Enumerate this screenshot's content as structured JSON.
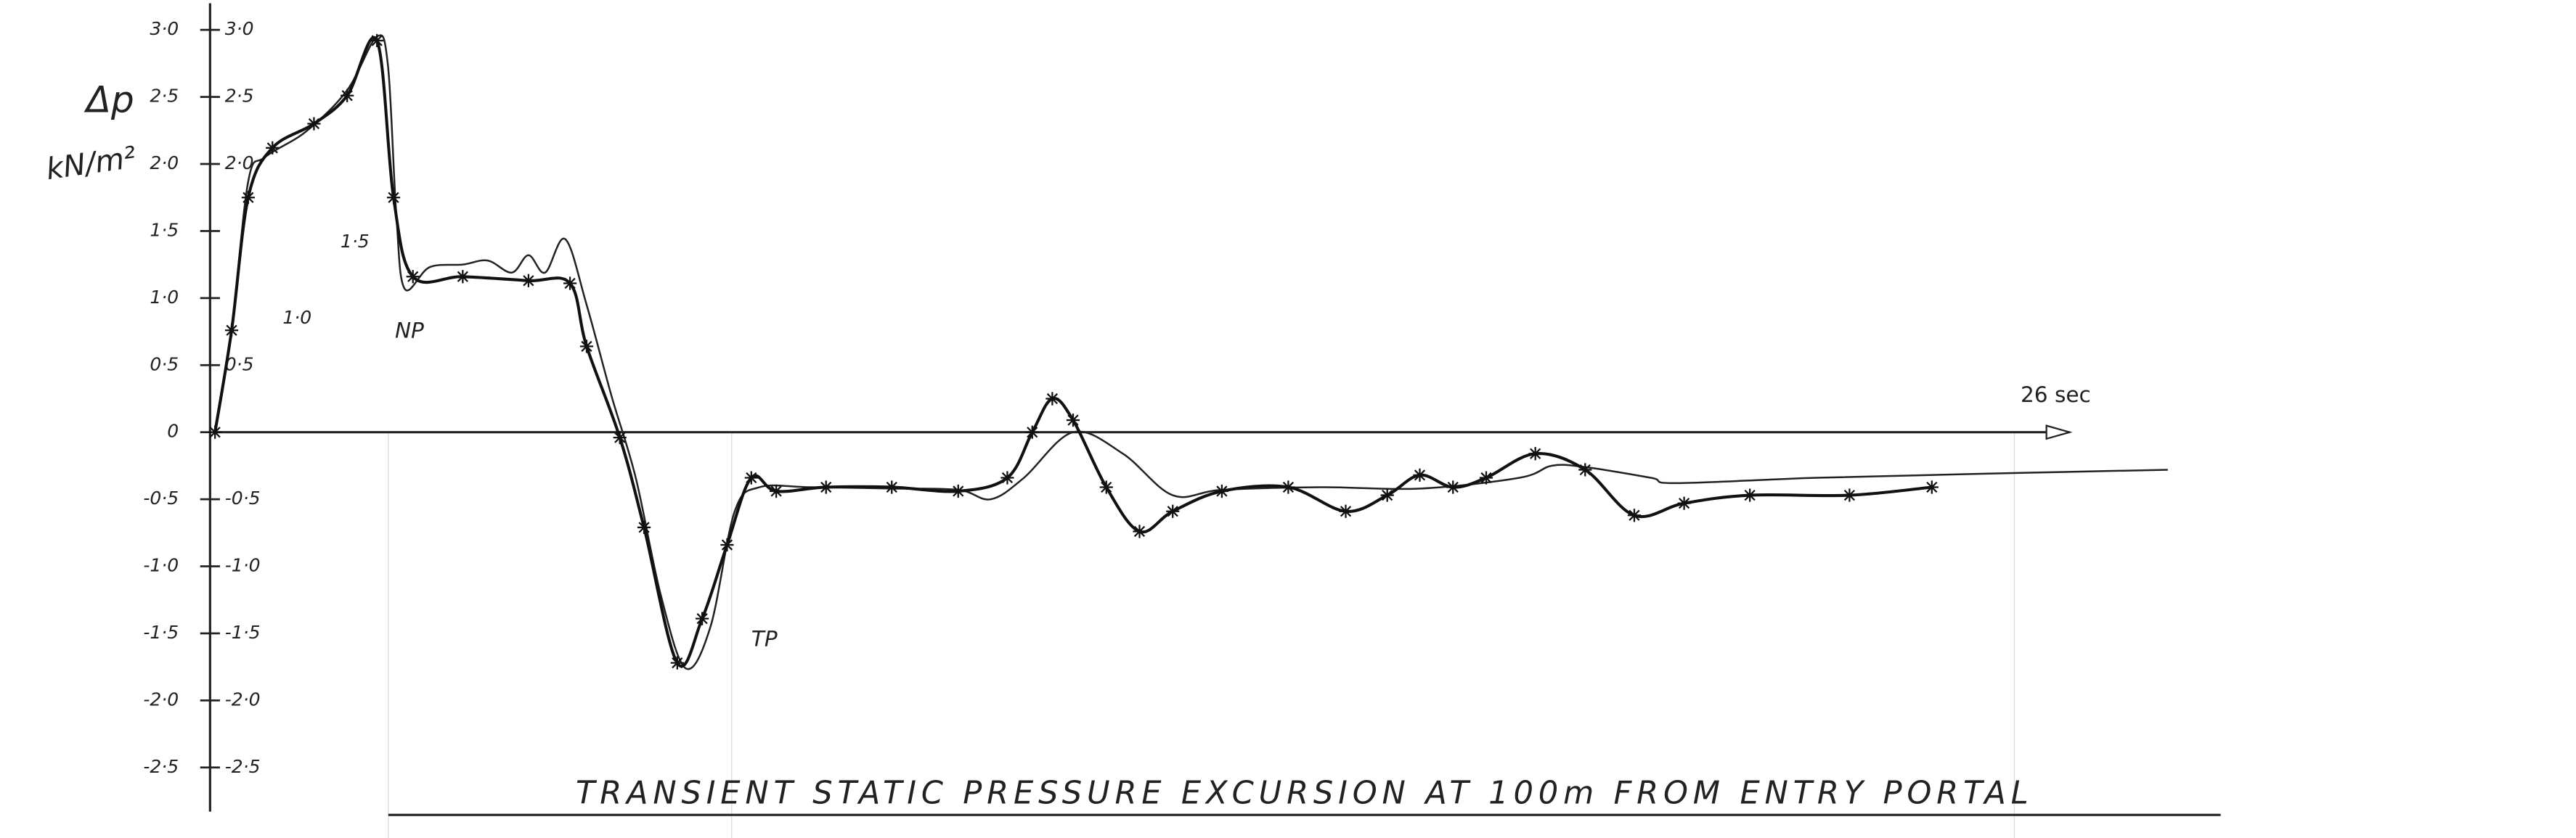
{
  "chart_data": {
    "type": "line",
    "title": "TRANSIENT STATIC PRESSURE EXCURSION AT 100m FROM ENTRY PORTAL",
    "y_label": "Δp",
    "y_unit": "kN/m²",
    "x_end_label": "26 sec",
    "annotations": [
      {
        "text": "NP",
        "x": 2.6,
        "y": 0.75
      },
      {
        "text": "TP",
        "x": 7.75,
        "y": -1.55
      }
    ],
    "xlim": [
      0,
      28.5
    ],
    "ylim": [
      -2.5,
      3.0
    ],
    "yticks": [
      {
        "value": 3.0,
        "label": "3·0"
      },
      {
        "value": 2.5,
        "label": "2·5"
      },
      {
        "value": 2.0,
        "label": "2·0"
      },
      {
        "value": 1.5,
        "label": "1·5"
      },
      {
        "value": 1.0,
        "label": "1·0"
      },
      {
        "value": 0.5,
        "label": "0·5"
      },
      0,
      {
        "value": -0.5,
        "label": "-0·5"
      },
      {
        "value": -1.0,
        "label": "-1·0"
      },
      {
        "value": -1.5,
        "label": "-1·5"
      },
      {
        "value": -2.0,
        "label": "-2·0"
      },
      {
        "value": -2.5,
        "label": "-2·5"
      }
    ],
    "y2lim": [
      -2.5,
      3.0
    ],
    "y2ticks": [
      {
        "value": 3.0,
        "label": "3·0"
      },
      {
        "value": 2.5,
        "label": "2·5"
      },
      {
        "value": 2.0,
        "label": "2·0"
      },
      {
        "value": 1.5,
        "label": "1·5"
      },
      {
        "value": 1.0,
        "label": "1·0"
      },
      {
        "value": 0.5,
        "label": "0·5"
      },
      {
        "value": -0.5,
        "label": "-0·5"
      },
      {
        "value": -1.0,
        "label": "-1·0"
      },
      {
        "value": -1.5,
        "label": "-1·5"
      },
      {
        "value": -2.0,
        "label": "-2·0"
      },
      {
        "value": -2.5,
        "label": "-2·5"
      }
    ],
    "series": [
      {
        "color": "#222",
        "marker": "none",
        "x": [
          0,
          0.24,
          0.48,
          0.72,
          1.31,
          1.91,
          2.34,
          2.5,
          2.62,
          2.74,
          3.1,
          3.58,
          3.94,
          4.29,
          4.53,
          4.77,
          5.06,
          5.37,
          5.73,
          6.08,
          6.44,
          6.8,
          7.16,
          7.51,
          7.87,
          8.59,
          9.78,
          10.74,
          11.21,
          11.69,
          12.4,
          13.12,
          13.84,
          14.55,
          15.98,
          17.42,
          18.85,
          19.32,
          19.8,
          20.75,
          21.11,
          23.14,
          25.52,
          28.22
        ],
        "values": [
          0,
          0.76,
          1.87,
          2.05,
          2.24,
          2.55,
          2.95,
          2.73,
          1.62,
          1.07,
          1.23,
          1.25,
          1.28,
          1.19,
          1.32,
          1.19,
          1.44,
          0.95,
          0.27,
          -0.34,
          -1.21,
          -1.76,
          -1.45,
          -0.59,
          -0.41,
          -0.41,
          -0.42,
          -0.43,
          -0.5,
          -0.34,
          0,
          -0.16,
          -0.47,
          -0.43,
          -0.41,
          -0.42,
          -0.34,
          -0.25,
          -0.26,
          -0.34,
          -0.38,
          -0.34,
          -0.31,
          -0.28
        ]
      },
      {
        "color": "#111",
        "marker": "star",
        "x": [
          0,
          0.24,
          0.48,
          0.83,
          1.43,
          1.91,
          2.34,
          2.58,
          2.86,
          3.58,
          4.53,
          5.13,
          5.37,
          5.85,
          6.2,
          6.68,
          7.04,
          7.4,
          7.75,
          8.11,
          8.83,
          9.78,
          10.74,
          11.45,
          11.81,
          12.1,
          12.4,
          12.88,
          13.36,
          13.84,
          14.55,
          15.51,
          16.34,
          16.94,
          17.41,
          17.89,
          18.37,
          19.08,
          19.8,
          20.51,
          21.23,
          22.18,
          23.62,
          24.81
        ],
        "values": [
          0,
          0.76,
          1.75,
          2.12,
          2.3,
          2.51,
          2.92,
          1.75,
          1.16,
          1.16,
          1.13,
          1.11,
          0.64,
          -0.04,
          -0.71,
          -1.72,
          -1.39,
          -0.84,
          -0.34,
          -0.44,
          -0.41,
          -0.41,
          -0.44,
          -0.34,
          0,
          0.25,
          0.09,
          -0.41,
          -0.74,
          -0.59,
          -0.44,
          -0.41,
          -0.59,
          -0.47,
          -0.32,
          -0.41,
          -0.34,
          -0.16,
          -0.28,
          -0.62,
          -0.53,
          -0.47,
          -0.47,
          -0.41
        ]
      }
    ]
  }
}
